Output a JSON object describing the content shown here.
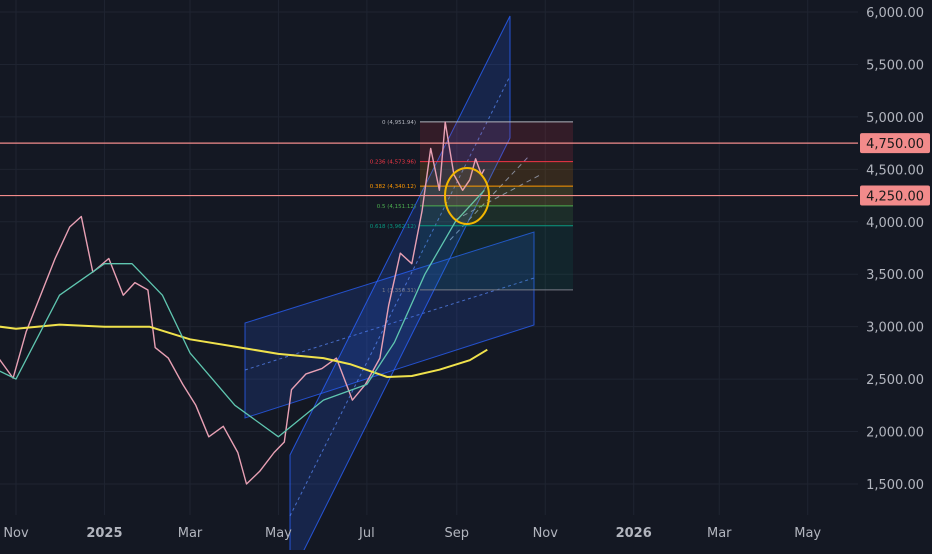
{
  "chart_data": {
    "type": "line",
    "background": "#141823",
    "y_axis": {
      "position": "right",
      "ticks": [
        6000,
        5500,
        5000,
        4500,
        4000,
        3500,
        3000,
        2500,
        2000,
        1500
      ],
      "tick_labels": [
        "6,000.00",
        "5,500.00",
        "5,000.00",
        "4,500.00",
        "4,000.00",
        "3,500.00",
        "3,000.00",
        "2,500.00",
        "2,000.00",
        "1,500.00"
      ],
      "ylim": [
        1350,
        6100
      ]
    },
    "x_axis": {
      "ticks": [
        "2024-11-01",
        "2025-01-01",
        "2025-03-01",
        "2025-05-01",
        "2025-07-01",
        "2025-09-01",
        "2025-11-01",
        "2026-01-01",
        "2026-03-01",
        "2026-05-01"
      ],
      "tick_labels": [
        "Nov",
        "2025",
        "Mar",
        "May",
        "Jul",
        "Sep",
        "Nov",
        "2026",
        "Mar",
        "May"
      ],
      "bold_labels": [
        "2025",
        "2026"
      ]
    },
    "horizontal_levels": [
      {
        "value": 4750,
        "label": "4,750.00",
        "color": "#f28b8b"
      },
      {
        "value": 4250,
        "label": "4,250.00",
        "color": "#f28b8b"
      }
    ],
    "fibonacci": [
      {
        "label": "0 (4,951.94)",
        "value": 4951.94,
        "color": "#b2b5be"
      },
      {
        "label": "0.236 (4,573.96)",
        "value": 4573.96,
        "color": "#f23645"
      },
      {
        "label": "0.382 (4,340.12)",
        "value": 4340.12,
        "color": "#ff9800"
      },
      {
        "label": "0.5 (4,151.12)",
        "value": 4151.12,
        "color": "#4caf50"
      },
      {
        "label": "0.618 (3,962.12)",
        "value": 3962.12,
        "color": "#089981"
      },
      {
        "label": "1 (3,350.31)",
        "value": 3350.31,
        "color": "#787b86"
      }
    ],
    "series": [
      {
        "kind": "close",
        "color": "#e8a0b4",
        "points": [
          [
            "2024-10-10",
            2620
          ],
          [
            "2024-10-20",
            2700
          ],
          [
            "2024-10-30",
            2510
          ],
          [
            "2024-11-08",
            2950
          ],
          [
            "2024-11-18",
            3300
          ],
          [
            "2024-11-28",
            3650
          ],
          [
            "2024-12-08",
            3950
          ],
          [
            "2024-12-16",
            4050
          ],
          [
            "2024-12-24",
            3520
          ],
          [
            "2025-01-04",
            3650
          ],
          [
            "2025-01-14",
            3300
          ],
          [
            "2025-01-22",
            3420
          ],
          [
            "2025-01-31",
            3350
          ],
          [
            "2025-02-05",
            2800
          ],
          [
            "2025-02-14",
            2700
          ],
          [
            "2025-02-24",
            2450
          ],
          [
            "2025-03-05",
            2250
          ],
          [
            "2025-03-14",
            1950
          ],
          [
            "2025-03-24",
            2050
          ],
          [
            "2025-04-03",
            1800
          ],
          [
            "2025-04-09",
            1500
          ],
          [
            "2025-04-18",
            1620
          ],
          [
            "2025-04-28",
            1800
          ],
          [
            "2025-05-05",
            1900
          ],
          [
            "2025-05-10",
            2400
          ],
          [
            "2025-05-20",
            2550
          ],
          [
            "2025-05-31",
            2600
          ],
          [
            "2025-06-10",
            2700
          ],
          [
            "2025-06-21",
            2300
          ],
          [
            "2025-06-30",
            2450
          ],
          [
            "2025-07-10",
            2700
          ],
          [
            "2025-07-16",
            3200
          ],
          [
            "2025-07-24",
            3700
          ],
          [
            "2025-08-01",
            3600
          ],
          [
            "2025-08-08",
            4100
          ],
          [
            "2025-08-14",
            4700
          ],
          [
            "2025-08-20",
            4300
          ],
          [
            "2025-08-24",
            4950
          ],
          [
            "2025-08-30",
            4450
          ],
          [
            "2025-09-05",
            4300
          ],
          [
            "2025-09-10",
            4400
          ],
          [
            "2025-09-14",
            4600
          ],
          [
            "2025-09-18",
            4450
          ],
          [
            "2025-09-20",
            4500
          ]
        ]
      },
      {
        "kind": "moving-average-200",
        "color": "#f0e24c",
        "points": [
          [
            "2024-10-10",
            3020
          ],
          [
            "2024-11-01",
            2980
          ],
          [
            "2024-12-01",
            3020
          ],
          [
            "2025-01-01",
            3000
          ],
          [
            "2025-02-01",
            3000
          ],
          [
            "2025-03-01",
            2880
          ],
          [
            "2025-04-01",
            2810
          ],
          [
            "2025-05-01",
            2740
          ],
          [
            "2025-06-01",
            2700
          ],
          [
            "2025-06-20",
            2640
          ],
          [
            "2025-07-15",
            2520
          ],
          [
            "2025-08-01",
            2530
          ],
          [
            "2025-08-20",
            2590
          ],
          [
            "2025-09-10",
            2680
          ],
          [
            "2025-09-22",
            2780
          ]
        ]
      },
      {
        "kind": "moving-average-50",
        "color": "#5fc6b0",
        "points": [
          [
            "2024-10-10",
            2650
          ],
          [
            "2024-11-01",
            2500
          ],
          [
            "2024-12-01",
            3300
          ],
          [
            "2025-01-01",
            3600
          ],
          [
            "2025-01-20",
            3600
          ],
          [
            "2025-02-10",
            3300
          ],
          [
            "2025-03-01",
            2750
          ],
          [
            "2025-04-01",
            2250
          ],
          [
            "2025-05-01",
            1950
          ],
          [
            "2025-06-01",
            2300
          ],
          [
            "2025-07-01",
            2450
          ],
          [
            "2025-07-20",
            2850
          ],
          [
            "2025-08-10",
            3500
          ],
          [
            "2025-08-31",
            4000
          ],
          [
            "2025-09-20",
            4300
          ]
        ]
      }
    ]
  }
}
